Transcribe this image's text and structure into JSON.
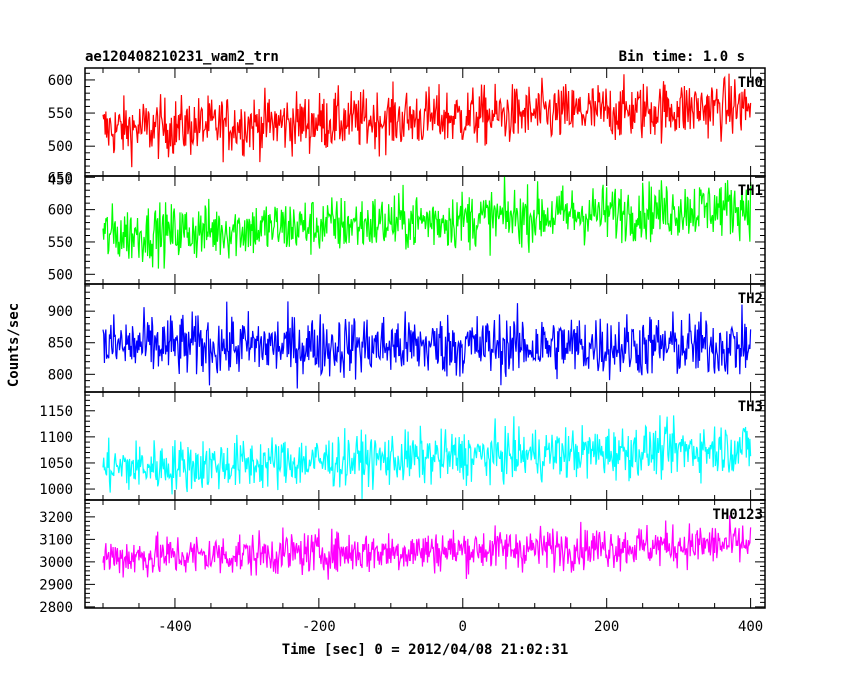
{
  "title_left": "ae120408210231_wam2_trn",
  "title_right": "Bin time: 1.0 s",
  "ylabel": "Counts/sec",
  "xlabel": "Time [sec] 0 = 2012/04/08 21:02:31",
  "chart_data": [
    {
      "type": "line",
      "series": [
        {
          "name": "TH0",
          "color": "#ff0000"
        }
      ],
      "x_range": [
        -500,
        400
      ],
      "trend": [
        525,
        560
      ],
      "noise": 40,
      "ylim": [
        455,
        618
      ],
      "yticks": [
        450,
        500,
        550,
        600
      ]
    },
    {
      "type": "line",
      "series": [
        {
          "name": "TH1",
          "color": "#00ff00"
        }
      ],
      "x_range": [
        -500,
        400
      ],
      "trend": [
        560,
        605
      ],
      "noise": 40,
      "ylim": [
        485,
        652
      ],
      "yticks": [
        500,
        550,
        600,
        650
      ]
    },
    {
      "type": "line",
      "series": [
        {
          "name": "TH2",
          "color": "#0000ff"
        }
      ],
      "x_range": [
        -500,
        400
      ],
      "trend": [
        845,
        845
      ],
      "noise": 45,
      "ylim": [
        772,
        943
      ],
      "yticks": [
        800,
        850,
        900
      ]
    },
    {
      "type": "line",
      "series": [
        {
          "name": "TH3",
          "color": "#00ffff"
        }
      ],
      "x_range": [
        -500,
        400
      ],
      "trend": [
        1040,
        1080
      ],
      "noise": 45,
      "ylim": [
        979,
        1186
      ],
      "yticks": [
        1000,
        1050,
        1100,
        1150
      ]
    },
    {
      "type": "line",
      "series": [
        {
          "name": "TH0123",
          "color": "#ff00ff"
        }
      ],
      "x_range": [
        -500,
        400
      ],
      "trend": [
        3020,
        3080
      ],
      "noise": 85,
      "ylim": [
        2795,
        3275
      ],
      "yticks": [
        2800,
        2900,
        3000,
        3100,
        3200
      ]
    }
  ],
  "xticks": [
    -400,
    -200,
    0,
    200,
    400
  ]
}
